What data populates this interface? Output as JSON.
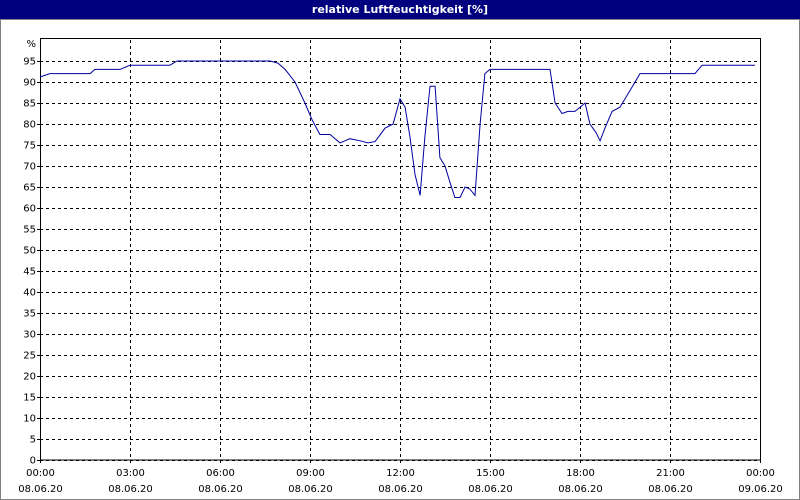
{
  "chart_data": {
    "type": "line",
    "title": "relative Luftfeuchtigkeit [%]",
    "y_unit": "%",
    "grid": true,
    "xlim": [
      0,
      24
    ],
    "xticks": [
      {
        "value": 0,
        "label": [
          "00:00",
          "08.06.20"
        ]
      },
      {
        "value": 3,
        "label": [
          "03:00",
          "08.06.20"
        ]
      },
      {
        "value": 6,
        "label": [
          "06:00",
          "08.06.20"
        ]
      },
      {
        "value": 9,
        "label": [
          "09:00",
          "08.06.20"
        ]
      },
      {
        "value": 12,
        "label": [
          "12:00",
          "08.06.20"
        ]
      },
      {
        "value": 15,
        "label": [
          "15:00",
          "08.06.20"
        ]
      },
      {
        "value": 18,
        "label": [
          "18:00",
          "08.06.20"
        ]
      },
      {
        "value": 21,
        "label": [
          "21:00",
          "08.06.20"
        ]
      },
      {
        "value": 24,
        "label": [
          "00:00",
          "09.06.20"
        ]
      }
    ],
    "ylim": [
      0,
      100
    ],
    "yticks": [
      0,
      5,
      10,
      15,
      20,
      25,
      30,
      35,
      40,
      45,
      50,
      55,
      60,
      65,
      70,
      75,
      80,
      85,
      90,
      95
    ],
    "series": [
      {
        "name": "relative Luftfeuchtigkeit",
        "color": "#0000a0",
        "x": [
          0,
          0.33,
          1.67,
          1.83,
          2.67,
          3.0,
          4.33,
          4.57,
          7.67,
          7.93,
          8.17,
          8.5,
          8.83,
          9.07,
          9.33,
          9.67,
          10.0,
          10.33,
          10.67,
          10.93,
          11.17,
          11.5,
          11.77,
          12.0,
          12.17,
          12.33,
          12.5,
          12.67,
          12.83,
          13.0,
          13.17,
          13.33,
          13.5,
          13.67,
          13.83,
          14.0,
          14.17,
          14.33,
          14.5,
          14.67,
          14.83,
          15.0,
          17.0,
          17.17,
          17.4,
          17.6,
          17.83,
          18.0,
          18.17,
          18.33,
          18.53,
          18.67,
          18.83,
          19.07,
          19.33,
          19.67,
          20.0,
          21.83,
          22.07,
          23.83
        ],
        "values": [
          91.2,
          92,
          92,
          93,
          93,
          94,
          94,
          95,
          95,
          94.5,
          93,
          90,
          85,
          81,
          77.5,
          77.5,
          75.5,
          76.5,
          76,
          75.5,
          75.8,
          79,
          80,
          86,
          84,
          77,
          68,
          63,
          77,
          89,
          89,
          72,
          70,
          66,
          62.5,
          62.5,
          65,
          64.5,
          63,
          80,
          92,
          93,
          93,
          85,
          82.5,
          83,
          83,
          84,
          85,
          80,
          78,
          76,
          79,
          83,
          84,
          88,
          92,
          92,
          94,
          94
        ]
      }
    ]
  }
}
